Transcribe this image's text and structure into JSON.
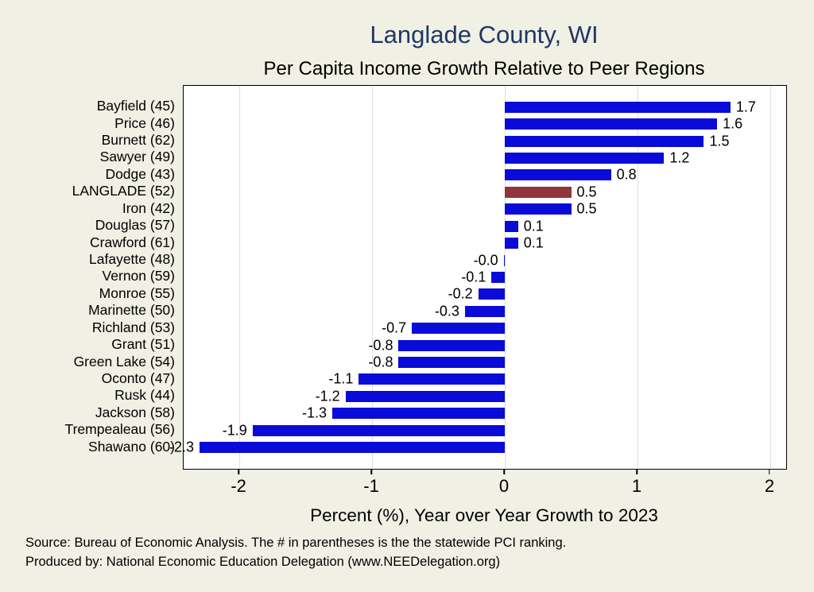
{
  "title": "Langlade County, WI",
  "subtitle": "Per Capita Income Growth Relative to Peer Regions",
  "chart_data": {
    "type": "bar",
    "orientation": "horizontal",
    "title": "Langlade County, WI",
    "subtitle": "Per Capita Income Growth Relative to Peer Regions",
    "xlabel": "Percent (%), Year over Year Growth to 2023",
    "ylabel": "",
    "xlim": [
      -2.42,
      2.12
    ],
    "grid": true,
    "categories": [
      "Bayfield (45)",
      "Price (46)",
      "Burnett (62)",
      "Sawyer (49)",
      "Dodge (43)",
      "LANGLADE (52)",
      "Iron (42)",
      "Douglas (57)",
      "Crawford (61)",
      "Lafayette (48)",
      "Vernon (59)",
      "Monroe (55)",
      "Marinette (50)",
      "Richland (53)",
      "Grant (51)",
      "Green Lake (54)",
      "Oconto (47)",
      "Rusk (44)",
      "Jackson (58)",
      "Trempealeau (56)",
      "Shawano (60)"
    ],
    "values": [
      1.7,
      1.6,
      1.5,
      1.2,
      0.8,
      0.5,
      0.5,
      0.1,
      0.1,
      -0.0,
      -0.1,
      -0.2,
      -0.3,
      -0.7,
      -0.8,
      -0.8,
      -1.1,
      -1.2,
      -1.3,
      -1.9,
      -2.3
    ],
    "value_labels": [
      "1.7",
      "1.6",
      "1.5",
      "1.2",
      "0.8",
      "0.5",
      "0.5",
      "0.1",
      "0.1",
      "-0.0",
      "-0.1",
      "-0.2",
      "-0.3",
      "-0.7",
      "-0.8",
      "-0.8",
      "-1.1",
      "-1.2",
      "-1.3",
      "-1.9",
      "-2.3"
    ],
    "x_ticks": [
      {
        "value": -2,
        "label": "-2"
      },
      {
        "value": -1,
        "label": "-1"
      },
      {
        "value": 0,
        "label": "0"
      },
      {
        "value": 1,
        "label": "1"
      },
      {
        "value": 2,
        "label": "2"
      }
    ],
    "highlight_category": "LANGLADE (52)",
    "bar_color": "#0a0ad9",
    "highlight_color": "#90353b",
    "title_color": "#1f3864",
    "legend": "none"
  },
  "footer": {
    "line1": "Source: Bureau of Economic Analysis. The # in parentheses is the the statewide PCI ranking.",
    "line2": "Produced by: National Economic Education Delegation (www.NEEDelegation.org)"
  }
}
